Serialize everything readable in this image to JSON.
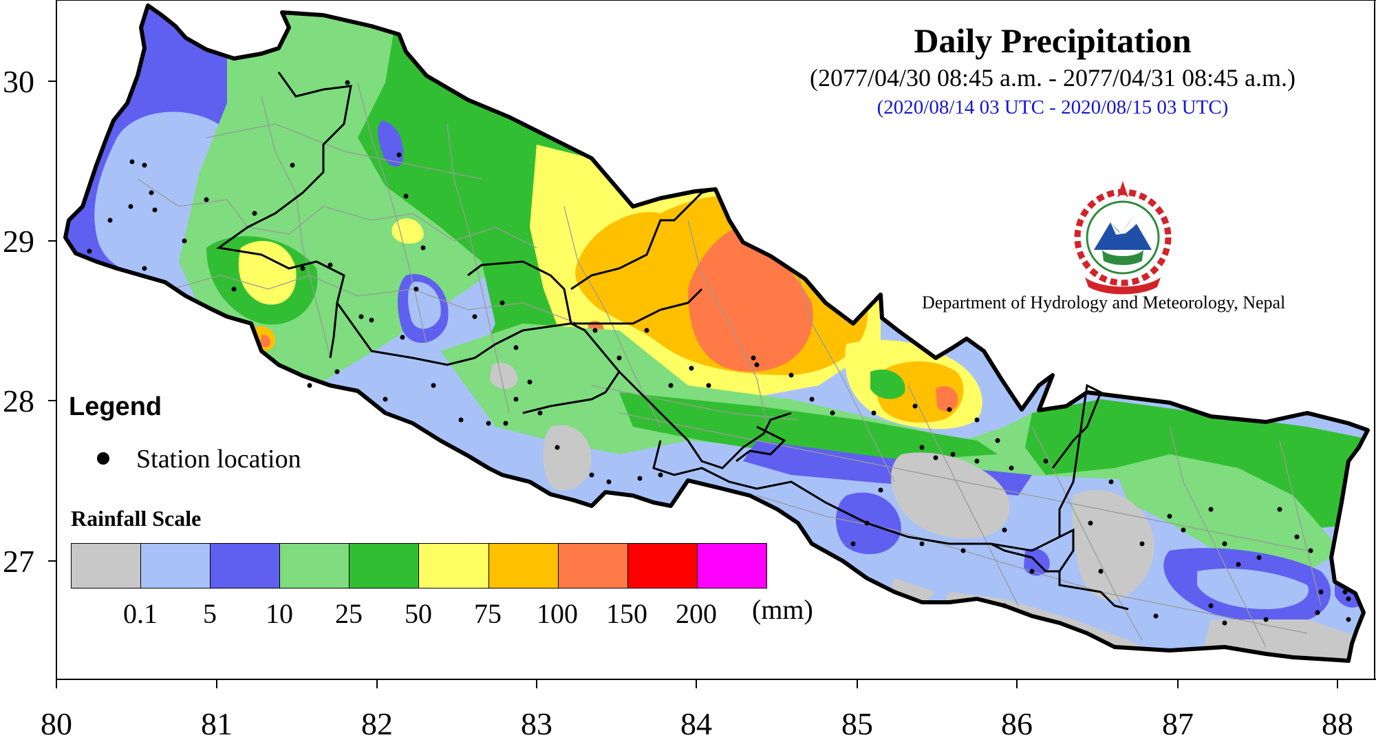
{
  "title": "Daily Precipitation",
  "nepali_period": "(2077/04/30 08:45 a.m. - 2077/04/31 08:45 a.m.)",
  "utc_period": "(2020/08/14 03 UTC - 2020/08/15 03 UTC)",
  "department": "Department of Hydrology and Meteorology, Nepal",
  "legend": {
    "title": "Legend",
    "station_label": "Station location"
  },
  "rainfall_scale": {
    "title": "Rainfall Scale",
    "unit": "(mm)",
    "labels": [
      "0.1",
      "5",
      "10",
      "25",
      "50",
      "75",
      "100",
      "150",
      "200"
    ],
    "colors": [
      "#c8c8c8",
      "#a8c2f8",
      "#5f5ff0",
      "#7fdc7f",
      "#32be32",
      "#ffff64",
      "#ffc000",
      "#ff7a46",
      "#ff0000",
      "#ff00ff"
    ]
  },
  "axes": {
    "x_ticks": [
      "80",
      "81",
      "82",
      "83",
      "84",
      "85",
      "86",
      "87",
      "88"
    ],
    "y_ticks": [
      "30",
      "29",
      "28",
      "27"
    ]
  },
  "colors": {
    "outline": "#000000",
    "district_lines": "#9a9a9a",
    "emblem_red": "#d2232a",
    "emblem_blue": "#1f4fa8"
  },
  "icons": [
    "government-emblem-icon"
  ]
}
